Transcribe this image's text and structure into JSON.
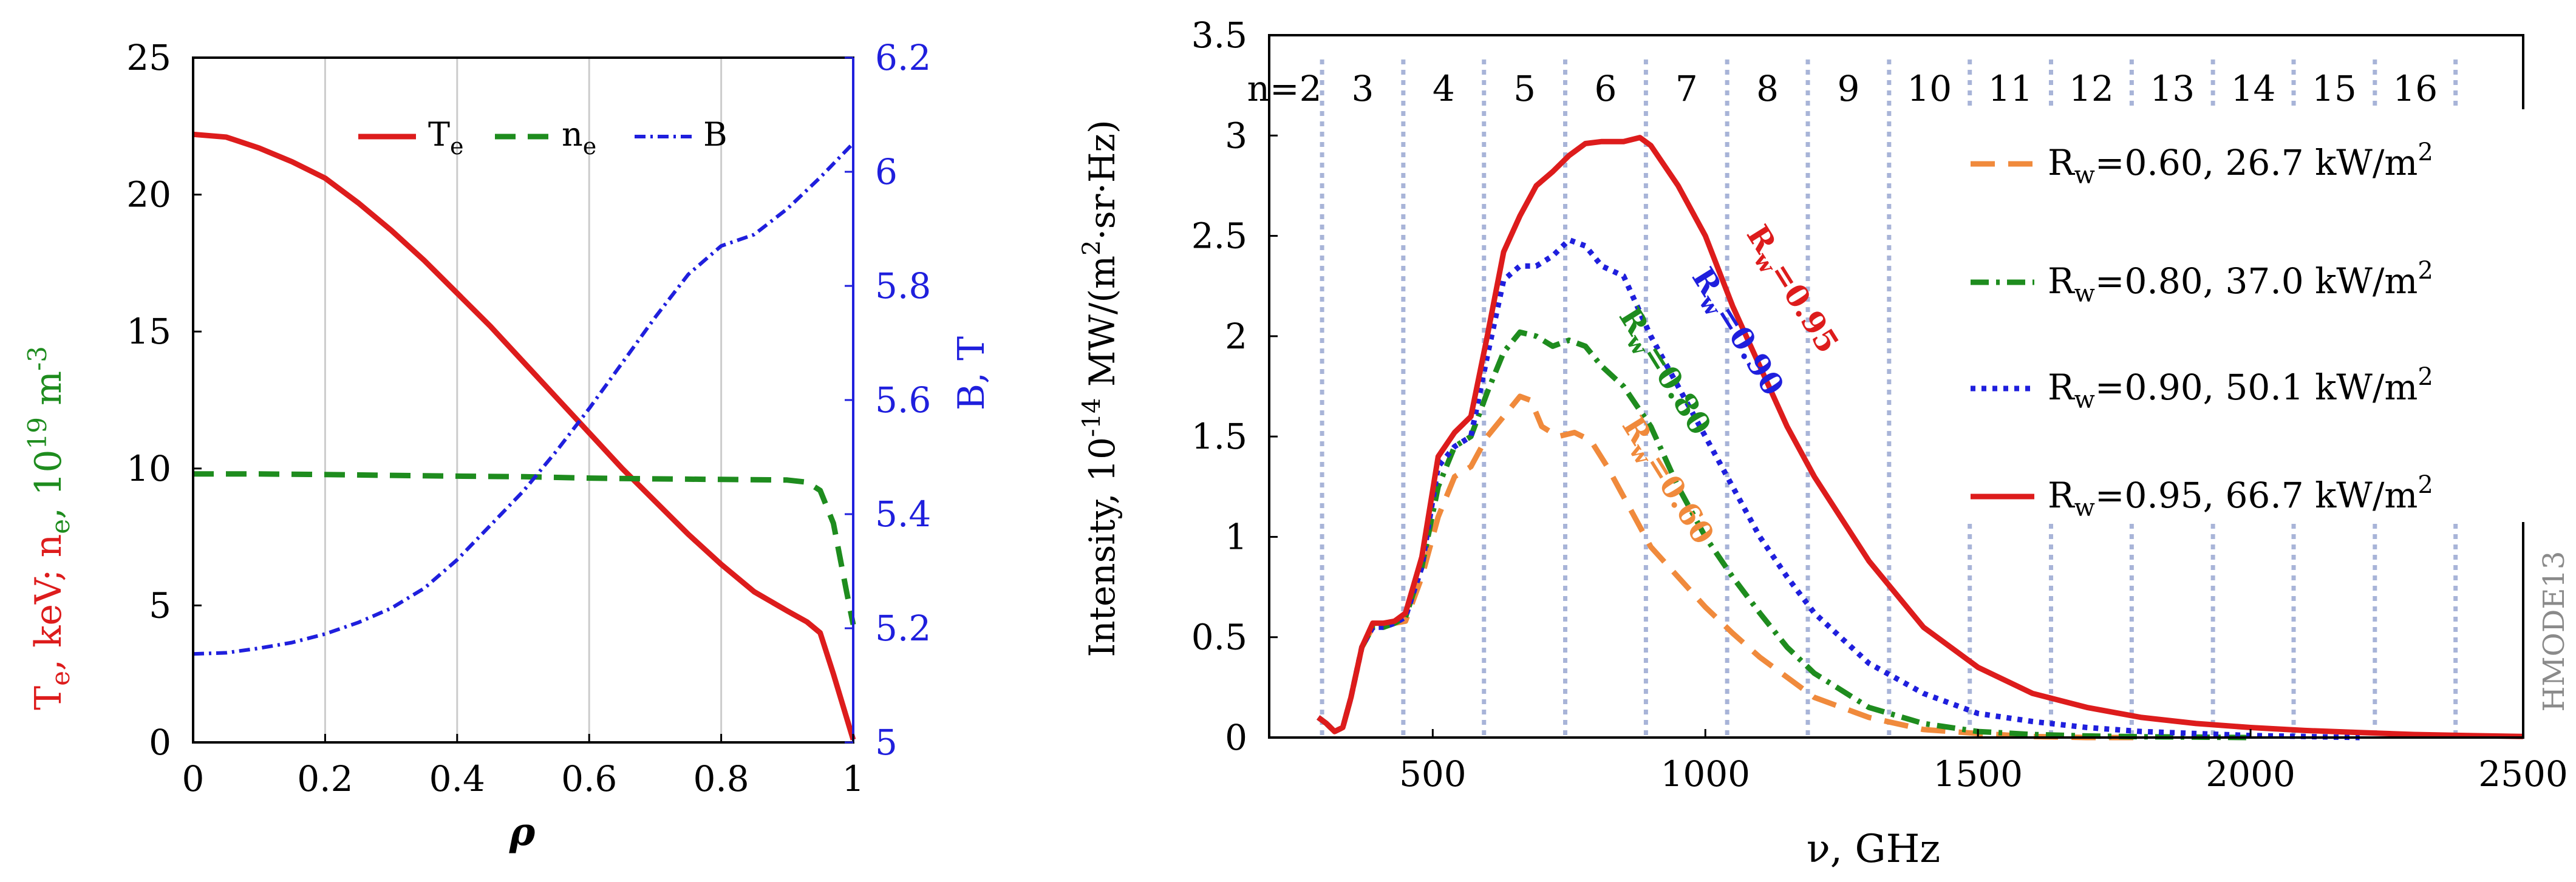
{
  "chart_data": [
    {
      "type": "line",
      "title": "",
      "xlabel": "ρ",
      "ylabel_left": {
        "a": "T",
        "a_sub": "e",
        "b": ", keV; n",
        "b_sub": "e",
        "c": ", 10",
        "c_sup": "19",
        "d": " m",
        "d_sup": "-3"
      },
      "ylabel_right": "B, T",
      "xlim": [
        0,
        1
      ],
      "ylim_left": [
        0,
        25
      ],
      "ylim_right": [
        5,
        6.2
      ],
      "xticks": [
        0,
        0.2,
        0.4,
        0.6,
        0.8,
        1
      ],
      "xtick_labels": [
        "0",
        "0.2",
        "0.4",
        "0.6",
        "0.8",
        "1"
      ],
      "yticks_left": [
        0,
        5,
        10,
        15,
        20,
        25
      ],
      "ytick_labels_left": [
        "0",
        "5",
        "10",
        "15",
        "20",
        "25"
      ],
      "yticks_right": [
        5,
        5.2,
        5.4,
        5.6,
        5.8,
        6,
        6.2
      ],
      "ytick_labels_right": [
        "5",
        "5.2",
        "5.4",
        "5.6",
        "5.8",
        "6",
        "6.2"
      ],
      "legend_position": "top-center",
      "colors": {
        "Te": "#dd1c1c",
        "ne": "#1e8c1e",
        "B": "#1f1fdd",
        "grid": "#cccccc"
      },
      "series": [
        {
          "name": "T",
          "name_sub": "e",
          "axis": "left",
          "style": "solid",
          "x": [
            0,
            0.05,
            0.1,
            0.15,
            0.2,
            0.25,
            0.3,
            0.35,
            0.4,
            0.45,
            0.5,
            0.55,
            0.6,
            0.65,
            0.7,
            0.75,
            0.8,
            0.85,
            0.9,
            0.93,
            0.95,
            0.97,
            1.0
          ],
          "y": [
            22.2,
            22.1,
            21.7,
            21.2,
            20.6,
            19.7,
            18.7,
            17.6,
            16.4,
            15.2,
            13.9,
            12.6,
            11.3,
            10.0,
            8.8,
            7.6,
            6.5,
            5.5,
            4.8,
            4.4,
            4.0,
            2.5,
            0.1
          ]
        },
        {
          "name": "n",
          "name_sub": "e",
          "axis": "left",
          "style": "dashed",
          "x": [
            0,
            0.1,
            0.2,
            0.3,
            0.4,
            0.5,
            0.6,
            0.7,
            0.8,
            0.9,
            0.93,
            0.95,
            0.97,
            0.99,
            1.0
          ],
          "y": [
            9.8,
            9.8,
            9.78,
            9.75,
            9.72,
            9.7,
            9.65,
            9.62,
            9.6,
            9.58,
            9.5,
            9.2,
            8.0,
            5.5,
            4.3
          ]
        },
        {
          "name": "B",
          "axis": "right",
          "style": "dash-dot",
          "x": [
            0,
            0.05,
            0.1,
            0.15,
            0.2,
            0.25,
            0.3,
            0.35,
            0.4,
            0.45,
            0.5,
            0.55,
            0.6,
            0.65,
            0.7,
            0.75,
            0.8,
            0.85,
            0.9,
            0.95,
            1.0
          ],
          "y": [
            5.155,
            5.157,
            5.165,
            5.175,
            5.19,
            5.21,
            5.235,
            5.27,
            5.32,
            5.38,
            5.44,
            5.51,
            5.585,
            5.665,
            5.745,
            5.82,
            5.87,
            5.89,
            5.935,
            5.99,
            6.05
          ]
        }
      ]
    },
    {
      "type": "line",
      "title": "",
      "xlabel": "ν, GHz",
      "ylabel": {
        "a": "Intensity, 10",
        "a_sup": "-14",
        "b": " MW/(m",
        "b_sup": "2",
        "c": "·sr·Hz)"
      },
      "xlim": [
        200,
        2500
      ],
      "ylim": [
        0,
        3.5
      ],
      "xticks": [
        500,
        1000,
        1500,
        2000,
        2500
      ],
      "xtick_labels": [
        "500",
        "1000",
        "1500",
        "2000",
        "2500"
      ],
      "yticks": [
        0,
        0.5,
        1,
        1.5,
        2,
        2.5,
        3,
        3.5
      ],
      "ytick_labels": [
        "0",
        "0.5",
        "1",
        "1.5",
        "2",
        "2.5",
        "3",
        "3.5"
      ],
      "harmonic_lines_ghz": [
        297,
        446,
        594,
        743,
        891,
        1040,
        1188,
        1337,
        1485,
        1634,
        1782,
        1931,
        2079,
        2228,
        2376
      ],
      "harmonic_labels": [
        "n=2",
        "3",
        "4",
        "5",
        "6",
        "7",
        "8",
        "9",
        "10",
        "11",
        "12",
        "13",
        "14",
        "15",
        "16"
      ],
      "side_label": "HMODE13",
      "legend_position": "right",
      "colors": {
        "R060": "#f08a3c",
        "R080": "#1e8c1e",
        "R090": "#1f1fdd",
        "R095": "#dd1c1c",
        "harmonic": "#a8b4d8",
        "side": "#8a8a8a"
      },
      "series": [
        {
          "name": "R",
          "name_sub": "w",
          "value": "=0.60, 26.7 kW/m",
          "value_sup": "2",
          "curve_label": "R",
          "curve_sub": "w",
          "curve_value": "=0.60",
          "style": "long-dash",
          "color": "#f08a3c",
          "x": [
            290,
            305,
            320,
            335,
            350,
            370,
            390,
            410,
            430,
            450,
            480,
            510,
            540,
            570,
            600,
            630,
            660,
            680,
            700,
            730,
            760,
            790,
            820,
            860,
            900,
            950,
            1000,
            1050,
            1100,
            1150,
            1200,
            1300,
            1400,
            1500,
            1600,
            1700,
            1800
          ],
          "y": [
            0.1,
            0.07,
            0.03,
            0.05,
            0.2,
            0.45,
            0.55,
            0.55,
            0.57,
            0.58,
            0.8,
            1.1,
            1.3,
            1.35,
            1.5,
            1.6,
            1.7,
            1.68,
            1.55,
            1.5,
            1.52,
            1.48,
            1.35,
            1.15,
            0.95,
            0.8,
            0.65,
            0.52,
            0.4,
            0.3,
            0.2,
            0.1,
            0.04,
            0.02,
            0.005,
            0,
            0
          ]
        },
        {
          "name": "R",
          "name_sub": "w",
          "value": "=0.80, 37.0 kW/m",
          "value_sup": "2",
          "curve_label": "R",
          "curve_sub": "w",
          "curve_value": "=0.80",
          "style": "dash-dot",
          "color": "#1e8c1e",
          "x": [
            290,
            305,
            320,
            335,
            350,
            370,
            390,
            410,
            430,
            450,
            480,
            510,
            540,
            570,
            600,
            630,
            660,
            690,
            720,
            750,
            780,
            810,
            850,
            900,
            950,
            1000,
            1050,
            1100,
            1150,
            1200,
            1300,
            1400,
            1500,
            1600,
            1700,
            1800,
            1900,
            2000
          ],
          "y": [
            0.1,
            0.07,
            0.03,
            0.05,
            0.2,
            0.45,
            0.55,
            0.55,
            0.57,
            0.6,
            0.85,
            1.25,
            1.45,
            1.5,
            1.72,
            1.92,
            2.02,
            2.0,
            1.95,
            1.98,
            1.95,
            1.85,
            1.75,
            1.55,
            1.25,
            1.0,
            0.8,
            0.62,
            0.45,
            0.32,
            0.15,
            0.07,
            0.03,
            0.015,
            0.008,
            0.004,
            0.002,
            0
          ]
        },
        {
          "name": "R",
          "name_sub": "w",
          "value": "=0.90, 50.1 kW/m",
          "value_sup": "2",
          "curve_label": "R",
          "curve_sub": "w",
          "curve_value": "=0.90",
          "style": "dotted",
          "color": "#1f1fdd",
          "x": [
            290,
            305,
            320,
            335,
            350,
            370,
            390,
            410,
            430,
            450,
            480,
            510,
            540,
            570,
            600,
            630,
            660,
            690,
            720,
            750,
            780,
            810,
            850,
            900,
            950,
            1000,
            1050,
            1100,
            1150,
            1200,
            1300,
            1400,
            1500,
            1600,
            1700,
            1800,
            1900,
            2000,
            2100,
            2200
          ],
          "y": [
            0.1,
            0.07,
            0.03,
            0.05,
            0.2,
            0.45,
            0.55,
            0.55,
            0.57,
            0.6,
            0.85,
            1.35,
            1.45,
            1.5,
            1.9,
            2.28,
            2.35,
            2.35,
            2.4,
            2.48,
            2.45,
            2.35,
            2.3,
            2.0,
            1.75,
            1.5,
            1.25,
            1.0,
            0.8,
            0.62,
            0.37,
            0.22,
            0.12,
            0.08,
            0.05,
            0.03,
            0.02,
            0.01,
            0.005,
            0
          ]
        },
        {
          "name": "R",
          "name_sub": "w",
          "value": "=0.95, 66.7 kW/m",
          "value_sup": "2",
          "curve_label": "R",
          "curve_sub": "w",
          "curve_value": "=0.95",
          "style": "solid",
          "color": "#dd1c1c",
          "x": [
            290,
            305,
            320,
            335,
            350,
            370,
            390,
            410,
            430,
            450,
            480,
            510,
            540,
            570,
            600,
            630,
            660,
            690,
            720,
            750,
            780,
            810,
            850,
            880,
            900,
            950,
            1000,
            1050,
            1100,
            1150,
            1200,
            1300,
            1400,
            1500,
            1600,
            1700,
            1800,
            1900,
            2000,
            2100,
            2200,
            2300,
            2400,
            2500
          ],
          "y": [
            0.1,
            0.07,
            0.03,
            0.05,
            0.2,
            0.45,
            0.57,
            0.57,
            0.58,
            0.62,
            0.9,
            1.4,
            1.52,
            1.6,
            2.0,
            2.42,
            2.6,
            2.75,
            2.82,
            2.9,
            2.96,
            2.97,
            2.97,
            2.99,
            2.95,
            2.75,
            2.5,
            2.15,
            1.85,
            1.55,
            1.3,
            0.88,
            0.55,
            0.35,
            0.22,
            0.15,
            0.1,
            0.07,
            0.05,
            0.035,
            0.025,
            0.015,
            0.01,
            0.005
          ]
        }
      ]
    }
  ]
}
